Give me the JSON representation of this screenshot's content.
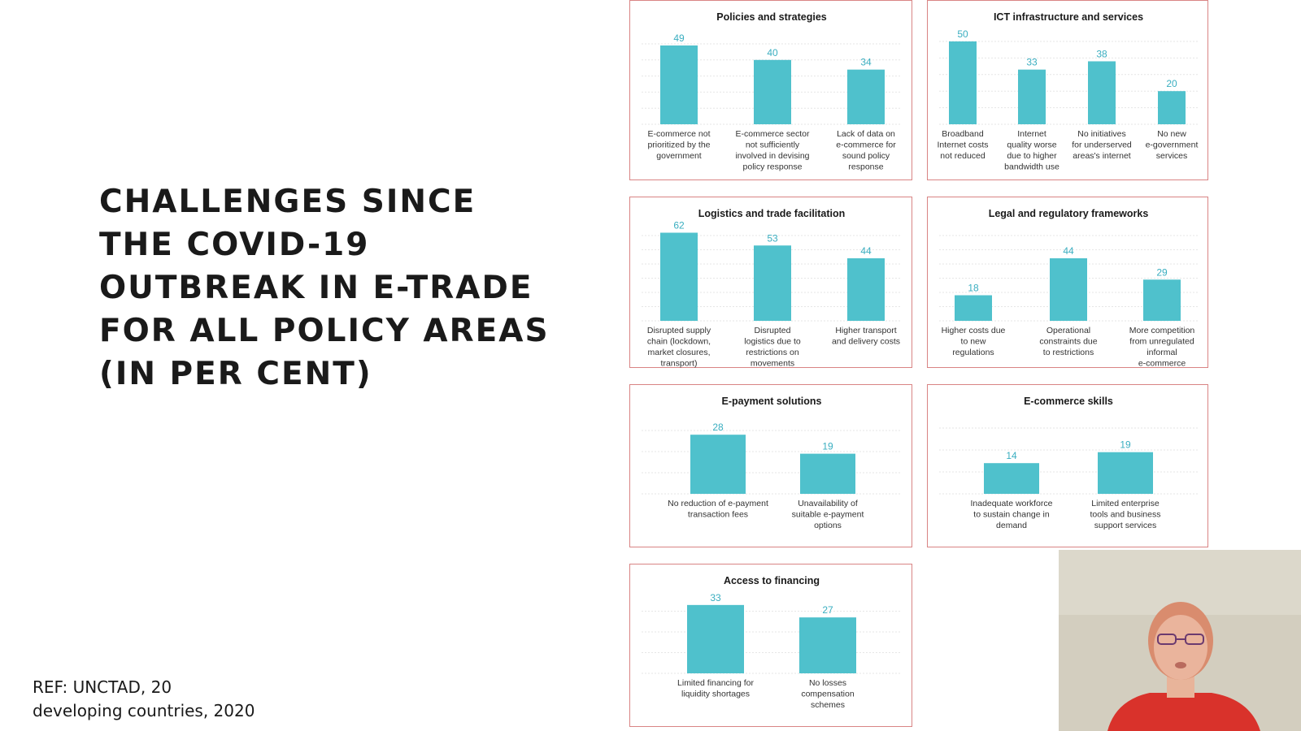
{
  "slide": {
    "title_lines": [
      "CHALLENGES SINCE",
      "THE COVID-19",
      "OUTBREAK IN E-TRADE",
      "FOR ALL POLICY AREAS",
      "(IN PER CENT)"
    ],
    "reference_lines": [
      "REF: UNCTAD, 20",
      "developing countries, 2020"
    ]
  },
  "colors": {
    "bar": "#4fc1cc",
    "value_label": "#3aaec0",
    "panel_border": "#d98484",
    "grid": "#e6e6e6"
  },
  "chart_data": [
    {
      "type": "bar",
      "title": "Policies and strategies",
      "categories": [
        "E-commerce not prioritized by the government",
        "E-commerce sector not sufficiently involved in devising policy response",
        "Lack of data on e-commerce for sound policy response"
      ],
      "category_lines": [
        [
          "E-commerce not",
          "prioritized by the",
          "government"
        ],
        [
          "E-commerce sector",
          "not sufficiently",
          "involved in devising",
          "policy response"
        ],
        [
          "Lack of data on",
          "e-commerce for",
          "sound policy",
          "response"
        ]
      ],
      "values": [
        49,
        40,
        34
      ],
      "ylim": [
        0,
        70
      ],
      "grid": true
    },
    {
      "type": "bar",
      "title": "ICT infrastructure and services",
      "categories": [
        "Broadband Internet costs not reduced",
        "Internet quality worse due to higher bandwidth use",
        "No initiatives for underserved areas's internet",
        "No new e-government services"
      ],
      "category_lines": [
        [
          "Broadband",
          "Internet costs",
          "not reduced"
        ],
        [
          "Internet",
          "quality worse",
          "due to higher",
          "bandwidth use"
        ],
        [
          "No initiatives",
          "for underserved",
          "areas's internet"
        ],
        [
          "No new",
          "e-government",
          "services"
        ]
      ],
      "values": [
        50,
        33,
        38,
        20
      ],
      "ylim": [
        0,
        70
      ],
      "grid": true
    },
    {
      "type": "bar",
      "title": "Logistics and trade facilitation",
      "categories": [
        "Disrupted supply chain (lockdown, market closures, transport)",
        "Disrupted logistics due to restrictions on movements",
        "Higher transport and delivery costs"
      ],
      "category_lines": [
        [
          "Disrupted supply",
          "chain (lockdown,",
          "market closures,",
          "transport)"
        ],
        [
          "Disrupted",
          "logistics due to",
          "restrictions on",
          "movements"
        ],
        [
          "Higher transport",
          "and delivery costs"
        ]
      ],
      "values": [
        62,
        53,
        44
      ],
      "ylim": [
        0,
        70
      ],
      "grid": true
    },
    {
      "type": "bar",
      "title": "Legal and regulatory frameworks",
      "categories": [
        "Higher costs due to new regulations",
        "Operational constraints due to restrictions",
        "More competition from unregulated informal e-commerce"
      ],
      "category_lines": [
        [
          "Higher costs due",
          "to new",
          "regulations"
        ],
        [
          "Operational",
          "constraints due",
          "to restrictions"
        ],
        [
          "More competition",
          "from unregulated",
          "informal",
          "e-commerce"
        ]
      ],
      "values": [
        18,
        44,
        29
      ],
      "ylim": [
        0,
        70
      ],
      "grid": true
    },
    {
      "type": "bar",
      "title": "E-payment solutions",
      "categories": [
        "No reduction of e-payment transaction fees",
        "Unavailability of suitable e-payment options"
      ],
      "category_lines": [
        [
          "No reduction of e-payment",
          "transaction fees"
        ],
        [
          "Unavailability of",
          "suitable e-payment",
          "options"
        ]
      ],
      "values": [
        28,
        19
      ],
      "ylim": [
        0,
        70
      ],
      "grid": true
    },
    {
      "type": "bar",
      "title": "E-commerce skills",
      "categories": [
        "Inadequate workforce to sustain change in demand",
        "Limited enterprise tools and business support services"
      ],
      "category_lines": [
        [
          "Inadequate workforce",
          "to sustain change in",
          "demand"
        ],
        [
          "Limited enterprise",
          "tools and business",
          "support services"
        ]
      ],
      "values": [
        14,
        19
      ],
      "ylim": [
        0,
        70
      ],
      "grid": true
    },
    {
      "type": "bar",
      "title": "Access to financing",
      "categories": [
        "Limited financing for liquidity shortages",
        "No losses compensation schemes"
      ],
      "category_lines": [
        [
          "Limited financing for",
          "liquidity shortages"
        ],
        [
          "No losses",
          "compensation",
          "schemes"
        ]
      ],
      "values": [
        33,
        27
      ],
      "ylim": [
        0,
        70
      ],
      "grid": true
    }
  ]
}
